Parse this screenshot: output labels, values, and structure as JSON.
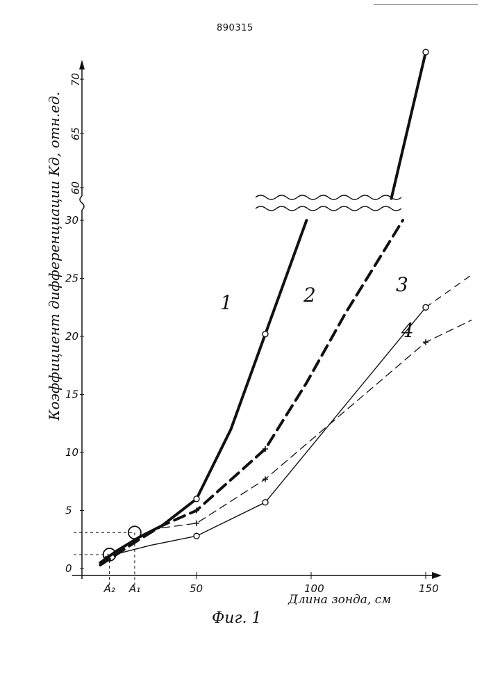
{
  "patent_number": "890315",
  "figure_caption": "Фиг. 1",
  "chart_data": {
    "type": "line",
    "xlabel": "Длина зонда, см",
    "ylabel": "Коэффициент дифференциации Kд, отн.ед.",
    "xlim": [
      0,
      170
    ],
    "ylim_lower": [
      0,
      30
    ],
    "ylim_upper": [
      58,
      72
    ],
    "axis_break": true,
    "x_ticks": [
      "50",
      "100",
      "150"
    ],
    "x_special_ticks": [
      "A₂",
      "A₁"
    ],
    "y_ticks_lower": [
      "0",
      "5",
      "10",
      "15",
      "20",
      "25",
      "30"
    ],
    "y_ticks_upper": [
      "60",
      "65",
      "70"
    ],
    "series": [
      {
        "name": "1",
        "style": "thick-solid",
        "points": [
          [
            8,
            0.5
          ],
          [
            15,
            1.5
          ],
          [
            25,
            2.7
          ],
          [
            35,
            3.7
          ],
          [
            50,
            6
          ],
          [
            65,
            12
          ],
          [
            80,
            20.2
          ],
          [
            98,
            30
          ]
        ],
        "upper_points": [
          [
            135,
            59
          ],
          [
            150,
            72.5
          ]
        ],
        "markers": [
          [
            50,
            6
          ],
          [
            80,
            20.2
          ],
          [
            150,
            72.5
          ]
        ]
      },
      {
        "name": "2",
        "style": "thick-dashed",
        "points": [
          [
            8,
            0.3
          ],
          [
            25,
            2.5
          ],
          [
            35,
            3.7
          ],
          [
            50,
            5
          ],
          [
            80,
            10.3
          ],
          [
            98,
            16
          ],
          [
            115,
            22
          ],
          [
            140,
            30
          ]
        ],
        "markers": [
          [
            50,
            5
          ],
          [
            80,
            10.3
          ]
        ]
      },
      {
        "name": "3",
        "style": "thin-solid",
        "points": [
          [
            10,
            1
          ],
          [
            30,
            2
          ],
          [
            50,
            2.8
          ],
          [
            80,
            5.7
          ],
          [
            150,
            22.5
          ]
        ],
        "extension": [
          [
            150,
            22.5
          ],
          [
            170,
            25.3
          ]
        ],
        "markers": [
          [
            50,
            2.8
          ],
          [
            80,
            5.7
          ],
          [
            150,
            22.5
          ]
        ]
      },
      {
        "name": "4",
        "style": "thin-dashed",
        "points": [
          [
            35,
            3.5
          ],
          [
            50,
            3.9
          ],
          [
            80,
            7.7
          ],
          [
            150,
            19.5
          ],
          [
            170,
            21.4
          ]
        ],
        "markers": [
          [
            50,
            3.9
          ],
          [
            80,
            7.7
          ],
          [
            150,
            19.5
          ]
        ]
      }
    ],
    "intersections": [
      {
        "label": "A₂",
        "x": 12,
        "y": 1.2
      },
      {
        "label": "A₁",
        "x": 23,
        "y": 3.1
      }
    ]
  }
}
